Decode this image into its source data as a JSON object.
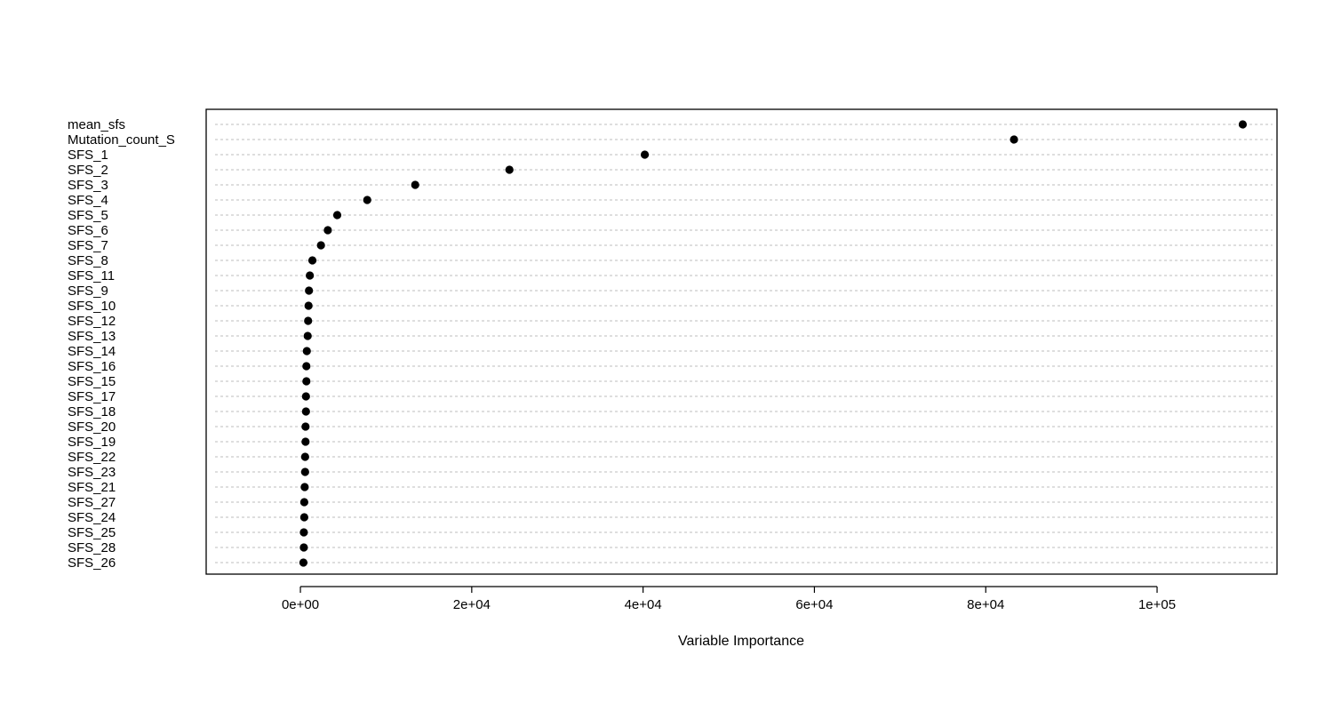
{
  "chart_data": {
    "type": "scatter",
    "xlabel": "Variable Importance",
    "xlim": [
      -11000,
      114000
    ],
    "xticks": [
      {
        "value": 0,
        "label": "0e+00"
      },
      {
        "value": 20000,
        "label": "2e+04"
      },
      {
        "value": 40000,
        "label": "4e+04"
      },
      {
        "value": 60000,
        "label": "6e+04"
      },
      {
        "value": 80000,
        "label": "8e+04"
      },
      {
        "value": 100000,
        "label": "1e+05"
      }
    ],
    "grid": "dashed horizontal lines per variable",
    "categories": [
      "mean_sfs",
      "Mutation_count_S",
      "SFS_1",
      "SFS_2",
      "SFS_3",
      "SFS_4",
      "SFS_5",
      "SFS_6",
      "SFS_7",
      "SFS_8",
      "SFS_11",
      "SFS_9",
      "SFS_10",
      "SFS_12",
      "SFS_13",
      "SFS_14",
      "SFS_16",
      "SFS_15",
      "SFS_17",
      "SFS_18",
      "SFS_20",
      "SFS_19",
      "SFS_22",
      "SFS_23",
      "SFS_21",
      "SFS_27",
      "SFS_24",
      "SFS_25",
      "SFS_28",
      "SFS_26"
    ],
    "values": [
      110000,
      83300,
      40200,
      24400,
      13400,
      7800,
      4300,
      3200,
      2400,
      1400,
      1100,
      1000,
      950,
      900,
      850,
      750,
      700,
      700,
      650,
      650,
      600,
      600,
      550,
      550,
      500,
      450,
      450,
      400,
      400,
      350
    ]
  }
}
